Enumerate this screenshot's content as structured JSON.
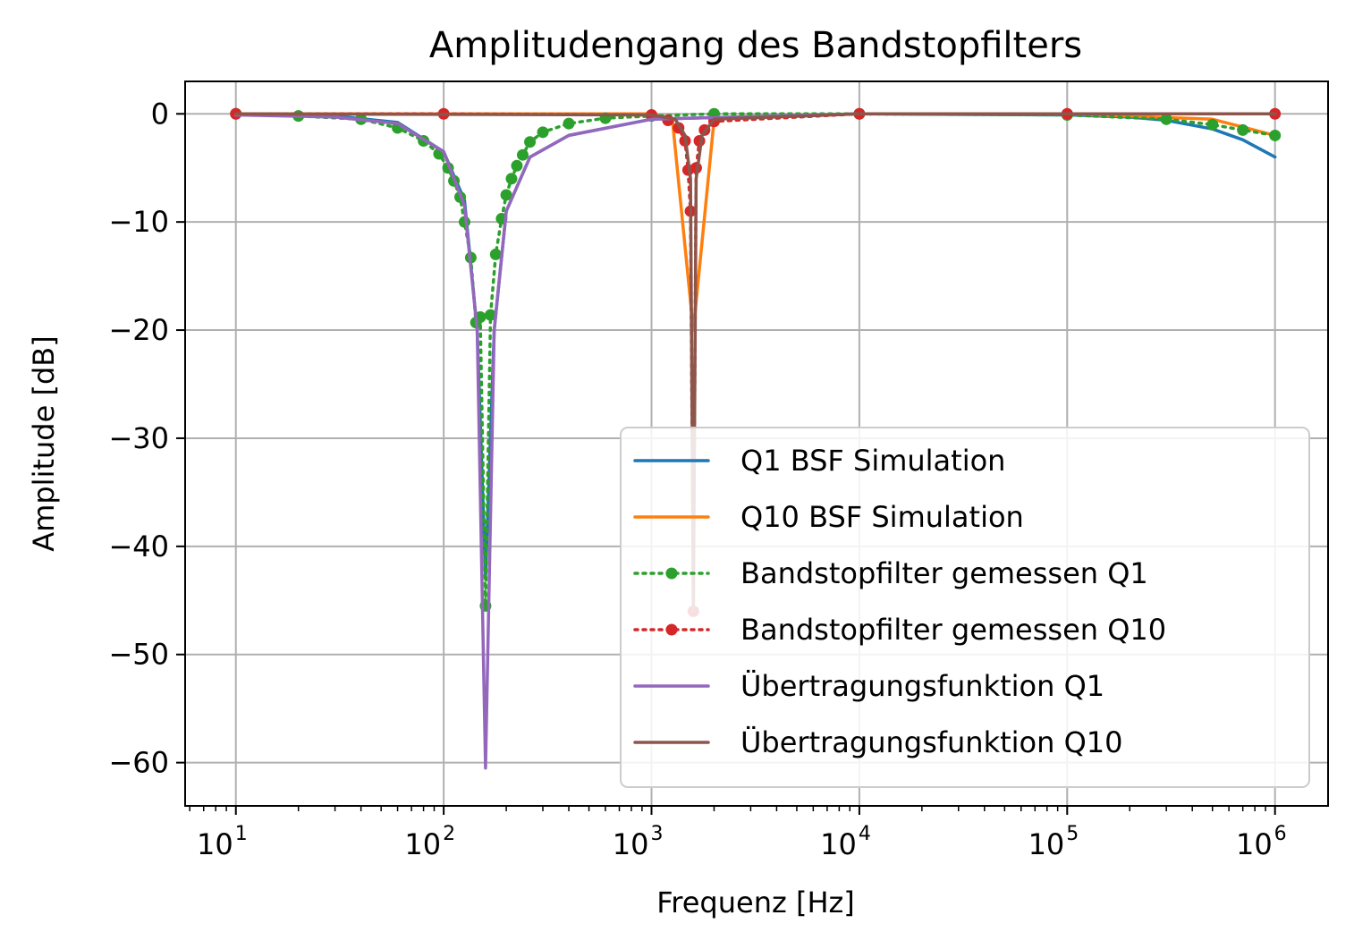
{
  "chart_data": {
    "type": "line",
    "title": "Amplitudengang des Bandstopfilters",
    "xlabel": "Frequenz [Hz]",
    "ylabel": "Amplitude [dB]",
    "x_scale": "log",
    "xlim": [
      5.7,
      1800000
    ],
    "ylim": [
      -64,
      3
    ],
    "x_ticks": [
      {
        "value": 10,
        "base": "10",
        "exp": "1"
      },
      {
        "value": 100,
        "base": "10",
        "exp": "2"
      },
      {
        "value": 1000,
        "base": "10",
        "exp": "3"
      },
      {
        "value": 10000,
        "base": "10",
        "exp": "4"
      },
      {
        "value": 100000,
        "base": "10",
        "exp": "5"
      },
      {
        "value": 1000000,
        "base": "10",
        "exp": "6"
      }
    ],
    "y_ticks": [
      {
        "value": 0,
        "label": "0"
      },
      {
        "value": -10,
        "label": "−10"
      },
      {
        "value": -20,
        "label": "−20"
      },
      {
        "value": -30,
        "label": "−30"
      },
      {
        "value": -40,
        "label": "−40"
      },
      {
        "value": -50,
        "label": "−50"
      },
      {
        "value": -60,
        "label": "−60"
      }
    ],
    "grid": true,
    "legend_position": "lower-right",
    "series": [
      {
        "name": "Q1 BSF Simulation",
        "color": "#1f77b4",
        "style": "solid",
        "x": [
          10,
          30,
          60,
          100,
          126,
          145,
          159,
          175,
          200,
          260,
          400,
          1000,
          10000,
          100000,
          200000,
          300000,
          500000,
          700000,
          1000000
        ],
        "y": [
          0,
          -0.2,
          -0.8,
          -3.5,
          -8,
          -20,
          -43,
          -20,
          -9,
          -4,
          -2,
          -0.5,
          0,
          -0.1,
          -0.3,
          -0.6,
          -1.4,
          -2.4,
          -4
        ]
      },
      {
        "name": "Q10 BSF Simulation",
        "color": "#ff7f0e",
        "style": "solid",
        "x": [
          10,
          1000,
          1260,
          1590,
          2000,
          10000,
          100000,
          500000,
          1000000
        ],
        "y": [
          0,
          0,
          -0.5,
          -20,
          -0.5,
          0,
          0,
          -0.5,
          -2
        ]
      },
      {
        "name": "Bandstopfilter gemessen Q1",
        "color": "#2ca02c",
        "style": "dotted-markers",
        "x": [
          10,
          20,
          40,
          60,
          80,
          95,
          105,
          112,
          120,
          126,
          135,
          143,
          150,
          159,
          168,
          178,
          190,
          200,
          212,
          225,
          240,
          260,
          300,
          400,
          600,
          1000,
          2000,
          10000,
          100000,
          300000,
          500000,
          700000,
          1000000
        ],
        "y": [
          0,
          -0.2,
          -0.5,
          -1.3,
          -2.5,
          -3.7,
          -5,
          -6.2,
          -7.7,
          -10,
          -13.3,
          -19.3,
          -18.8,
          -45.5,
          -18.6,
          -13,
          -9.7,
          -7.5,
          -6,
          -4.8,
          -3.8,
          -2.6,
          -1.7,
          -0.9,
          -0.4,
          -0.2,
          0,
          0,
          -0.1,
          -0.5,
          -1,
          -1.5,
          -2
        ]
      },
      {
        "name": "Bandstopfilter gemessen Q10",
        "color": "#d62728",
        "style": "dotted-markers",
        "x": [
          10,
          100,
          1000,
          1200,
          1350,
          1450,
          1500,
          1540,
          1590,
          1640,
          1700,
          1800,
          2000,
          10000,
          100000,
          1000000
        ],
        "y": [
          0,
          0,
          -0.1,
          -0.6,
          -1.3,
          -2.5,
          -5.2,
          -9,
          -46,
          -5,
          -2.5,
          -1.5,
          -0.7,
          0,
          0,
          0
        ]
      },
      {
        "name": "Übertragungsfunktion Q1",
        "color": "#9467bd",
        "style": "solid",
        "x": [
          10,
          30,
          60,
          100,
          126,
          145,
          159,
          175,
          200,
          260,
          400,
          1000,
          10000,
          1000000
        ],
        "y": [
          -0.1,
          -0.3,
          -0.9,
          -3.5,
          -8.5,
          -20,
          -60.5,
          -20,
          -9,
          -4,
          -2,
          -0.5,
          0,
          0
        ]
      },
      {
        "name": "Übertragungsfunktion Q10",
        "color": "#8c564b",
        "style": "solid",
        "x": [
          10,
          1000,
          1300,
          1450,
          1540,
          1590,
          1640,
          1750,
          2000,
          10000,
          1000000
        ],
        "y": [
          0,
          -0.1,
          -0.5,
          -2,
          -6,
          -46,
          -6,
          -2,
          -0.5,
          0,
          0
        ]
      }
    ]
  }
}
